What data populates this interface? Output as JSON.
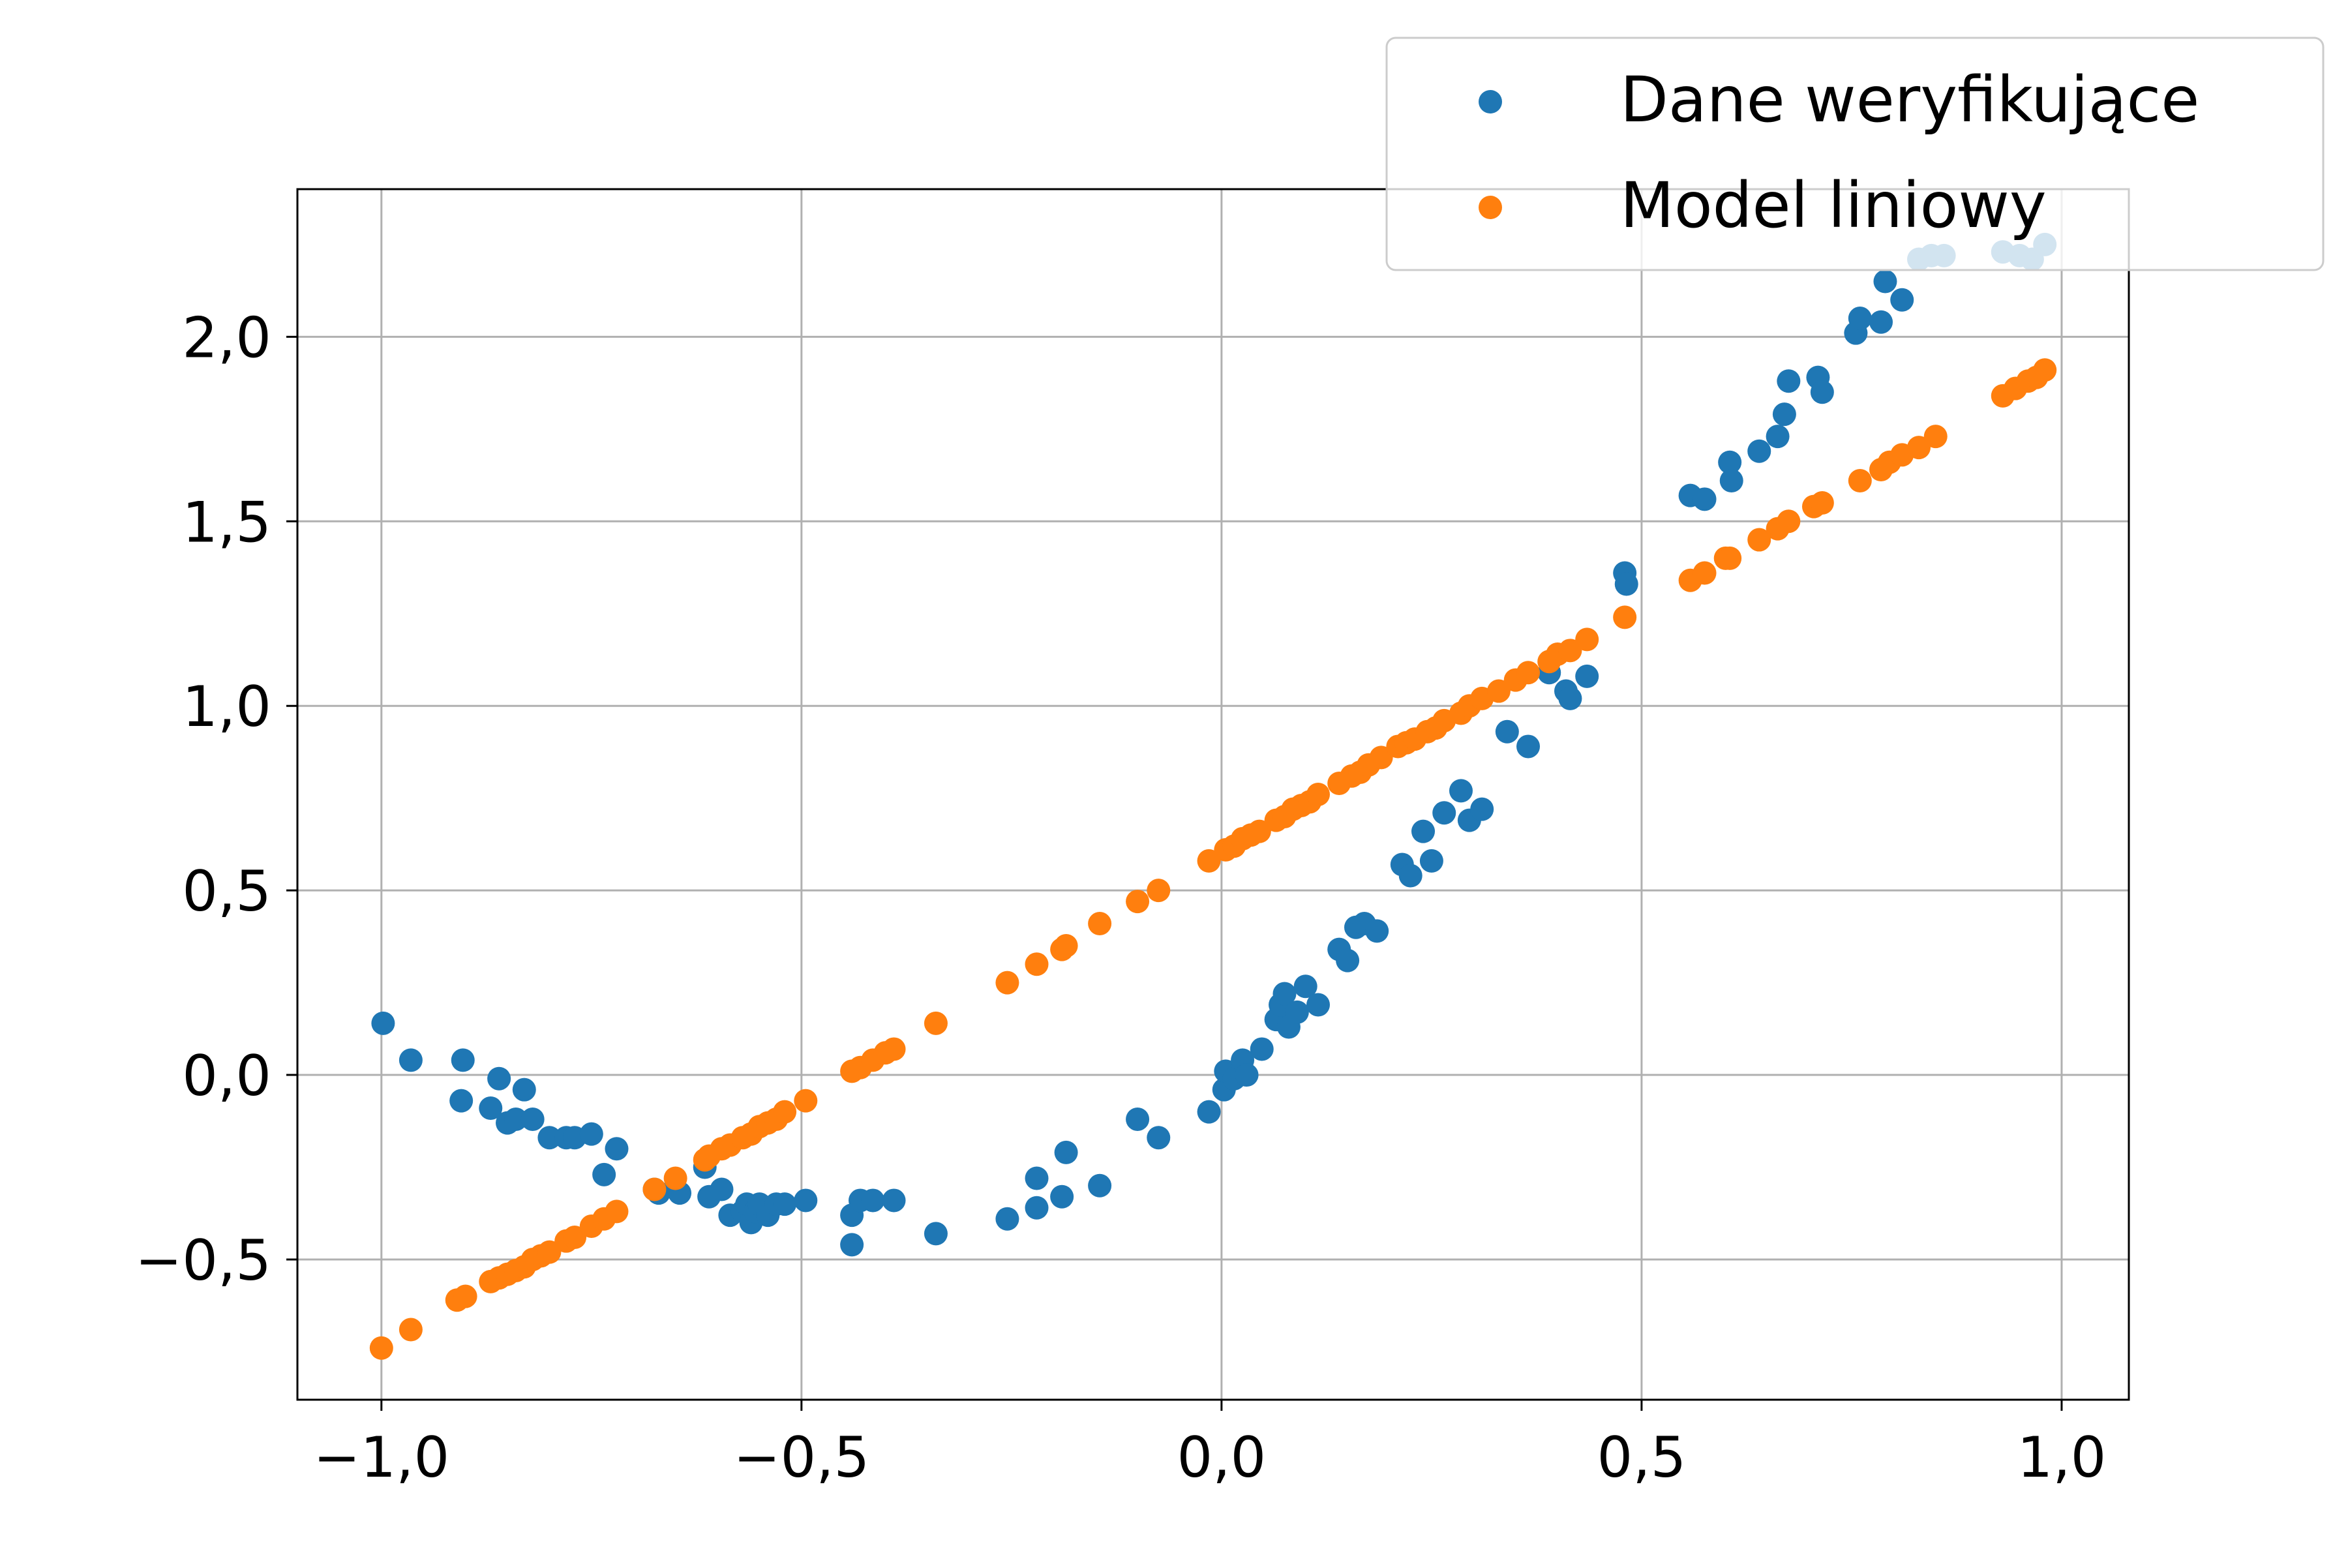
{
  "chart_data": {
    "type": "scatter",
    "title": "",
    "xlabel": "",
    "ylabel": "",
    "xlim": [
      -1.1,
      1.08
    ],
    "ylim": [
      -0.88,
      2.4
    ],
    "grid": true,
    "legend_position": "top-right",
    "x_ticks": [
      -1.0,
      -0.5,
      0.0,
      0.5,
      1.0
    ],
    "x_tick_labels": [
      "−1,0",
      "−0,5",
      "0,0",
      "0,5",
      "1,0"
    ],
    "y_ticks": [
      -0.5,
      0.0,
      0.5,
      1.0,
      1.5,
      2.0
    ],
    "y_tick_labels": [
      "−0,5",
      "0,0",
      "0,5",
      "1,0",
      "1,5",
      "2,0"
    ],
    "series": [
      {
        "name": "Dane weryfikujące",
        "color": "#1f77b4",
        "points": [
          [
            -0.998,
            0.14
          ],
          [
            -0.965,
            0.04
          ],
          [
            -0.905,
            -0.07
          ],
          [
            -0.903,
            0.04
          ],
          [
            -0.87,
            -0.09
          ],
          [
            -0.86,
            -0.01
          ],
          [
            -0.85,
            -0.13
          ],
          [
            -0.84,
            -0.12
          ],
          [
            -0.83,
            -0.04
          ],
          [
            -0.82,
            -0.12
          ],
          [
            -0.8,
            -0.17
          ],
          [
            -0.78,
            -0.17
          ],
          [
            -0.77,
            -0.17
          ],
          [
            -0.75,
            -0.16
          ],
          [
            -0.735,
            -0.27
          ],
          [
            -0.72,
            -0.2
          ],
          [
            -0.675,
            -0.31
          ],
          [
            -0.67,
            -0.32
          ],
          [
            -0.645,
            -0.32
          ],
          [
            -0.615,
            -0.25
          ],
          [
            -0.61,
            -0.33
          ],
          [
            -0.595,
            -0.31
          ],
          [
            -0.585,
            -0.38
          ],
          [
            -0.57,
            -0.37
          ],
          [
            -0.565,
            -0.35
          ],
          [
            -0.56,
            -0.4
          ],
          [
            -0.555,
            -0.37
          ],
          [
            -0.55,
            -0.35
          ],
          [
            -0.54,
            -0.38
          ],
          [
            -0.53,
            -0.35
          ],
          [
            -0.52,
            -0.35
          ],
          [
            -0.495,
            -0.34
          ],
          [
            -0.44,
            -0.46
          ],
          [
            -0.44,
            -0.38
          ],
          [
            -0.43,
            -0.34
          ],
          [
            -0.415,
            -0.34
          ],
          [
            -0.39,
            -0.34
          ],
          [
            -0.34,
            -0.43
          ],
          [
            -0.255,
            -0.39
          ],
          [
            -0.22,
            -0.28
          ],
          [
            -0.22,
            -0.36
          ],
          [
            -0.19,
            -0.33
          ],
          [
            -0.185,
            -0.21
          ],
          [
            -0.145,
            -0.3
          ],
          [
            -0.1,
            -0.12
          ],
          [
            -0.075,
            -0.17
          ],
          [
            -0.015,
            -0.1
          ],
          [
            0.003,
            -0.04
          ],
          [
            0.005,
            0.01
          ],
          [
            0.015,
            -0.01
          ],
          [
            0.025,
            0.04
          ],
          [
            0.03,
            0.0
          ],
          [
            0.048,
            0.07
          ],
          [
            0.065,
            0.15
          ],
          [
            0.07,
            0.19
          ],
          [
            0.075,
            0.22
          ],
          [
            0.08,
            0.13
          ],
          [
            0.09,
            0.17
          ],
          [
            0.1,
            0.24
          ],
          [
            0.115,
            0.19
          ],
          [
            0.14,
            0.34
          ],
          [
            0.15,
            0.31
          ],
          [
            0.16,
            0.4
          ],
          [
            0.17,
            0.41
          ],
          [
            0.185,
            0.39
          ],
          [
            0.215,
            0.57
          ],
          [
            0.225,
            0.54
          ],
          [
            0.24,
            0.66
          ],
          [
            0.25,
            0.58
          ],
          [
            0.265,
            0.71
          ],
          [
            0.285,
            0.77
          ],
          [
            0.295,
            0.69
          ],
          [
            0.31,
            0.72
          ],
          [
            0.34,
            0.93
          ],
          [
            0.365,
            0.89
          ],
          [
            0.39,
            1.09
          ],
          [
            0.41,
            1.04
          ],
          [
            0.415,
            1.02
          ],
          [
            0.435,
            1.08
          ],
          [
            0.48,
            1.36
          ],
          [
            0.482,
            1.33
          ],
          [
            0.558,
            1.57
          ],
          [
            0.575,
            1.56
          ],
          [
            0.605,
            1.66
          ],
          [
            0.607,
            1.61
          ],
          [
            0.64,
            1.69
          ],
          [
            0.662,
            1.73
          ],
          [
            0.67,
            1.79
          ],
          [
            0.675,
            1.88
          ],
          [
            0.71,
            1.89
          ],
          [
            0.715,
            1.85
          ],
          [
            0.755,
            2.01
          ],
          [
            0.76,
            2.05
          ],
          [
            0.785,
            2.04
          ],
          [
            0.79,
            2.15
          ],
          [
            0.81,
            2.1
          ],
          [
            0.83,
            2.21
          ],
          [
            0.845,
            2.22
          ],
          [
            0.86,
            2.22
          ],
          [
            0.93,
            2.23
          ],
          [
            0.95,
            2.22
          ],
          [
            0.965,
            2.21
          ],
          [
            0.98,
            2.25
          ]
        ]
      },
      {
        "name": "Model liniowy",
        "color": "#ff7f0e",
        "points": [
          [
            -1.0,
            -0.74
          ],
          [
            -0.965,
            -0.69
          ],
          [
            -0.91,
            -0.61
          ],
          [
            -0.9,
            -0.6
          ],
          [
            -0.87,
            -0.56
          ],
          [
            -0.86,
            -0.55
          ],
          [
            -0.85,
            -0.54
          ],
          [
            -0.84,
            -0.53
          ],
          [
            -0.83,
            -0.52
          ],
          [
            -0.82,
            -0.5
          ],
          [
            -0.81,
            -0.49
          ],
          [
            -0.8,
            -0.48
          ],
          [
            -0.78,
            -0.45
          ],
          [
            -0.77,
            -0.44
          ],
          [
            -0.75,
            -0.41
          ],
          [
            -0.735,
            -0.39
          ],
          [
            -0.72,
            -0.37
          ],
          [
            -0.675,
            -0.31
          ],
          [
            -0.65,
            -0.28
          ],
          [
            -0.615,
            -0.23
          ],
          [
            -0.61,
            -0.22
          ],
          [
            -0.595,
            -0.2
          ],
          [
            -0.585,
            -0.19
          ],
          [
            -0.57,
            -0.17
          ],
          [
            -0.56,
            -0.16
          ],
          [
            -0.55,
            -0.14
          ],
          [
            -0.54,
            -0.13
          ],
          [
            -0.53,
            -0.12
          ],
          [
            -0.52,
            -0.1
          ],
          [
            -0.495,
            -0.07
          ],
          [
            -0.44,
            0.01
          ],
          [
            -0.43,
            0.02
          ],
          [
            -0.415,
            0.04
          ],
          [
            -0.4,
            0.06
          ],
          [
            -0.39,
            0.07
          ],
          [
            -0.34,
            0.14
          ],
          [
            -0.255,
            0.25
          ],
          [
            -0.22,
            0.3
          ],
          [
            -0.19,
            0.34
          ],
          [
            -0.185,
            0.35
          ],
          [
            -0.145,
            0.41
          ],
          [
            -0.1,
            0.47
          ],
          [
            -0.075,
            0.5
          ],
          [
            -0.015,
            0.58
          ],
          [
            0.005,
            0.61
          ],
          [
            0.015,
            0.62
          ],
          [
            0.025,
            0.64
          ],
          [
            0.035,
            0.65
          ],
          [
            0.045,
            0.66
          ],
          [
            0.065,
            0.69
          ],
          [
            0.075,
            0.7
          ],
          [
            0.085,
            0.72
          ],
          [
            0.095,
            0.73
          ],
          [
            0.105,
            0.74
          ],
          [
            0.115,
            0.76
          ],
          [
            0.14,
            0.79
          ],
          [
            0.155,
            0.81
          ],
          [
            0.165,
            0.82
          ],
          [
            0.175,
            0.84
          ],
          [
            0.19,
            0.86
          ],
          [
            0.21,
            0.89
          ],
          [
            0.22,
            0.9
          ],
          [
            0.23,
            0.91
          ],
          [
            0.245,
            0.93
          ],
          [
            0.255,
            0.94
          ],
          [
            0.265,
            0.96
          ],
          [
            0.285,
            0.98
          ],
          [
            0.295,
            1.0
          ],
          [
            0.31,
            1.02
          ],
          [
            0.33,
            1.04
          ],
          [
            0.35,
            1.07
          ],
          [
            0.365,
            1.09
          ],
          [
            0.39,
            1.12
          ],
          [
            0.4,
            1.14
          ],
          [
            0.415,
            1.15
          ],
          [
            0.435,
            1.18
          ],
          [
            0.48,
            1.24
          ],
          [
            0.558,
            1.34
          ],
          [
            0.575,
            1.36
          ],
          [
            0.6,
            1.4
          ],
          [
            0.605,
            1.4
          ],
          [
            0.64,
            1.45
          ],
          [
            0.662,
            1.48
          ],
          [
            0.675,
            1.5
          ],
          [
            0.705,
            1.54
          ],
          [
            0.715,
            1.55
          ],
          [
            0.76,
            1.61
          ],
          [
            0.785,
            1.64
          ],
          [
            0.795,
            1.66
          ],
          [
            0.81,
            1.68
          ],
          [
            0.83,
            1.7
          ],
          [
            0.85,
            1.73
          ],
          [
            0.93,
            1.84
          ],
          [
            0.945,
            1.86
          ],
          [
            0.96,
            1.88
          ],
          [
            0.97,
            1.89
          ],
          [
            0.98,
            1.91
          ]
        ]
      }
    ]
  }
}
